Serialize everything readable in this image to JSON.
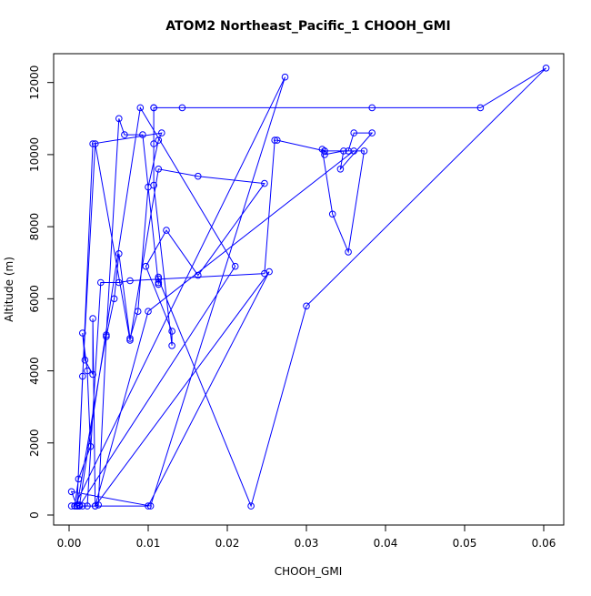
{
  "chart_data": {
    "type": "line",
    "title": "ATOM2 Northeast_Pacific_1 CHOOH_GMI",
    "xlabel": "CHOOH_GMI",
    "ylabel": "Altitude (m)",
    "xlim": [
      0.0,
      0.06
    ],
    "ylim": [
      0,
      12800
    ],
    "x_ticks": [
      0.0,
      0.01,
      0.02,
      0.03,
      0.04,
      0.05,
      0.06
    ],
    "x_tick_labels": [
      "0.00",
      "0.01",
      "0.02",
      "0.03",
      "0.04",
      "0.05",
      "0.06"
    ],
    "y_ticks": [
      0,
      2000,
      4000,
      6000,
      8000,
      10000,
      12000
    ],
    "y_tick_labels": [
      "0",
      "2000",
      "4000",
      "6000",
      "8000",
      "10000",
      "12000"
    ],
    "grid": false,
    "markers": "open-circle",
    "color": "#0000ff",
    "series": [
      {
        "x": [
          0.0007,
          0.0012,
          0.0027,
          0.0023,
          0.0017,
          0.002,
          0.003,
          0.003,
          0.0033,
          0.0037,
          0.0047,
          0.0057,
          0.0063,
          0.0077,
          0.0087,
          0.01,
          0.0113,
          0.0117,
          0.003,
          0.001,
          0.0017,
          0.0033,
          0.0077,
          0.0113,
          0.0163,
          0.0247,
          0.0163,
          0.0123,
          0.0097,
          0.013,
          0.013,
          0.0107,
          0.0107,
          0.0107,
          0.0107,
          0.0143,
          0.0383,
          0.052,
          0.0603,
          0.03,
          0.023,
          0.0113,
          0.0113,
          0.0113,
          0.0113,
          0.0113,
          0.0093,
          0.007,
          0.0063,
          0.0047,
          0.001,
          0.001,
          0.0013,
          0.0013,
          0.0023,
          0.004,
          0.0063,
          0.0077,
          0.0247,
          0.026,
          0.0263,
          0.0323,
          0.032,
          0.0333,
          0.0353,
          0.0373,
          0.0323,
          0.0323,
          0.0347,
          0.0343,
          0.0383,
          0.036,
          0.0353,
          0.036,
          0.01,
          0.0033,
          0.0253,
          0.01,
          0.0017,
          0.0013,
          0.021,
          0.009,
          0.0013,
          0.0007,
          0.0273,
          0.0103,
          0.0003,
          0.001,
          0.0003
        ],
        "y": [
          250,
          1000,
          1900,
          4000,
          5050,
          4300,
          3900,
          5450,
          250,
          280,
          4950,
          6000,
          7250,
          4900,
          5650,
          9100,
          10400,
          10600,
          10300,
          250,
          3850,
          10300,
          4850,
          9600,
          9400,
          9200,
          6650,
          7900,
          6900,
          5100,
          4700,
          9150,
          10300,
          11300,
          11300,
          11300,
          11300,
          11300,
          12400,
          5800,
          250,
          6550,
          6600,
          6450,
          6400,
          6400,
          10550,
          10550,
          11000,
          5000,
          250,
          250,
          280,
          250,
          250,
          6450,
          6450,
          6500,
          6700,
          10400,
          10400,
          10100,
          10150,
          8350,
          7300,
          10100,
          10100,
          10000,
          10100,
          9600,
          10600,
          10600,
          10100,
          10100,
          5650,
          250,
          6750,
          250,
          250,
          250,
          6900,
          11300,
          250,
          250,
          12150,
          250,
          650,
          250,
          250
        ]
      }
    ]
  }
}
